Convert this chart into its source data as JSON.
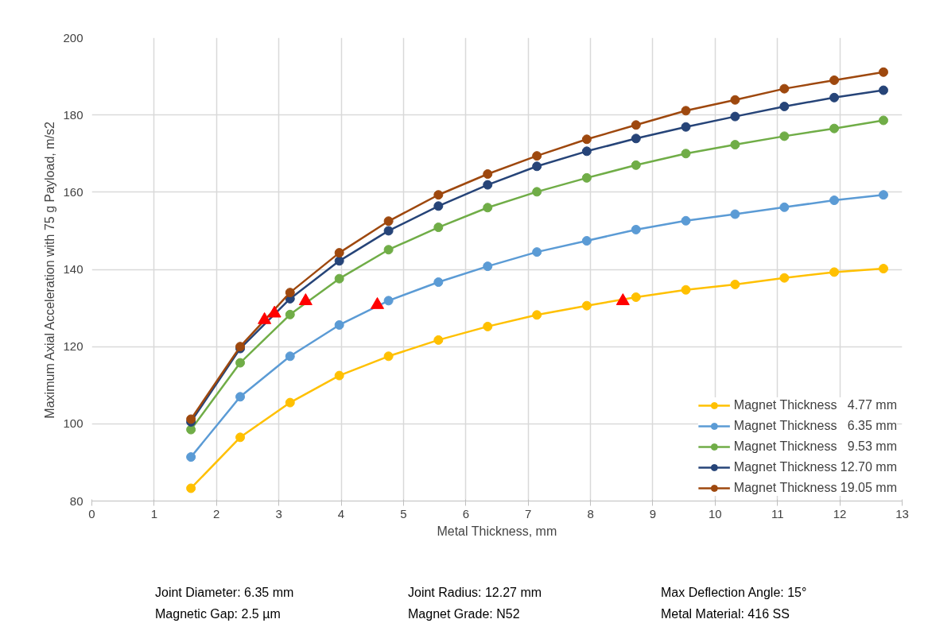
{
  "chart_data": {
    "type": "line",
    "xlabel": "Metal Thickness, mm",
    "ylabel": "Maximum Axial Acceleration with 75 g Payload, m/s2",
    "x": [
      1.59,
      2.38,
      3.18,
      3.97,
      4.76,
      5.56,
      6.35,
      7.14,
      7.94,
      8.73,
      9.53,
      10.32,
      11.11,
      11.91,
      12.7
    ],
    "series": [
      {
        "name": "Magnet Thickness   4.77 mm",
        "color": "#ffc000",
        "values": [
          83.3,
          96.5,
          105.5,
          112.5,
          117.5,
          121.7,
          125.2,
          128.2,
          130.6,
          132.8,
          134.7,
          136.1,
          137.8,
          139.3,
          140.2
        ]
      },
      {
        "name": "Magnet Thickness   6.35 mm",
        "color": "#5b9bd5",
        "values": [
          91.4,
          107,
          117.5,
          125.6,
          131.9,
          136.7,
          140.8,
          144.5,
          147.4,
          150.3,
          152.6,
          154.3,
          156.1,
          157.9,
          159.3
        ]
      },
      {
        "name": "Magnet Thickness   9.53 mm",
        "color": "#70ad47",
        "values": [
          98.5,
          115.8,
          128.3,
          137.6,
          145.1,
          150.9,
          156,
          160.1,
          163.7,
          167,
          170,
          172.3,
          174.5,
          176.5,
          178.6
        ]
      },
      {
        "name": "Magnet Thickness 12.70 mm",
        "color": "#264478",
        "values": [
          100.5,
          119.5,
          132.4,
          142.2,
          150,
          156.4,
          161.9,
          166.7,
          170.6,
          173.9,
          176.9,
          179.6,
          182.2,
          184.5,
          186.4
        ]
      },
      {
        "name": "Magnet Thickness 19.05 mm",
        "color": "#9e480e",
        "values": [
          101.2,
          120,
          134,
          144.3,
          152.5,
          159.3,
          164.7,
          169.4,
          173.7,
          177.4,
          181.1,
          183.9,
          186.8,
          189,
          191.1
        ]
      },
      {
        "type": "scatter",
        "marker": "triangle",
        "color": "#ff0000",
        "x": [
          2.77,
          2.93,
          3.43,
          4.58,
          8.52
        ],
        "values": [
          126.9,
          128.6,
          131.8,
          130.8,
          131.8
        ]
      }
    ],
    "xlim": [
      0,
      13
    ],
    "xticks": [
      0,
      1,
      2,
      3,
      4,
      5,
      6,
      7,
      8,
      9,
      10,
      11,
      12,
      13
    ],
    "ylim": [
      80,
      200
    ],
    "yticks": [
      80,
      100,
      120,
      140,
      160,
      180,
      200
    ],
    "grid": true,
    "legend": "bottom right",
    "marker": "circle",
    "line_style": "solid",
    "annotations": [
      "Joint Diameter: 6.35 mm",
      "Joint Radius: 12.27 mm",
      "Max Deflection Angle: 15°",
      "Magnetic Gap: 2.5 µm",
      "Magnet Grade: N52",
      "Metal Material: 416 SS"
    ]
  }
}
